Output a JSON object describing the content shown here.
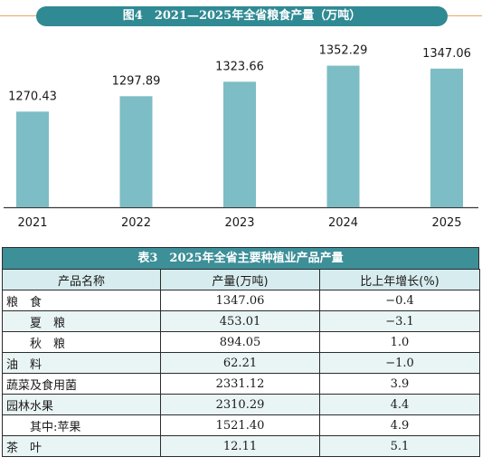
{
  "figure": {
    "title": "图4　2021—2025年全省粮食产量（万吨）"
  },
  "chart_data": [
    {
      "type": "bar",
      "title": "图4　2021—2025年全省粮食产量（万吨）",
      "categories": [
        "2021",
        "2022",
        "2023",
        "2024",
        "2025"
      ],
      "values": [
        1270.43,
        1297.89,
        1323.66,
        1352.29,
        1347.06
      ],
      "value_labels": [
        "1270.43",
        "1297.89",
        "1323.66",
        "1352.29",
        "1347.06"
      ],
      "ylim": [
        1100,
        1400
      ],
      "grid": false,
      "bar_color": "#7dbdc5"
    },
    {
      "type": "table",
      "title": "表3　2025年全省主要种植业产品产量",
      "columns": [
        "产品名称",
        "产量(万吨)",
        "比上年增长(%)"
      ],
      "rows": [
        [
          "粮　食",
          "1347.06",
          "−0.4"
        ],
        [
          "　　夏　粮",
          "453.01",
          "−3.1"
        ],
        [
          "　　秋　粮",
          "894.05",
          "1.0"
        ],
        [
          "油　料",
          "62.21",
          "−1.0"
        ],
        [
          "蔬菜及食用菌",
          "2331.12",
          "3.9"
        ],
        [
          "园林水果",
          "2310.29",
          "4.4"
        ],
        [
          "　　其中:苹果",
          "1521.40",
          "4.9"
        ],
        [
          "茶　叶",
          "12.11",
          "5.1"
        ]
      ]
    }
  ],
  "colors": {
    "accent": "#2f8a93",
    "header_bg": "#d7ecee",
    "bar": "#7dbdc5",
    "rule": "#e8a866"
  }
}
